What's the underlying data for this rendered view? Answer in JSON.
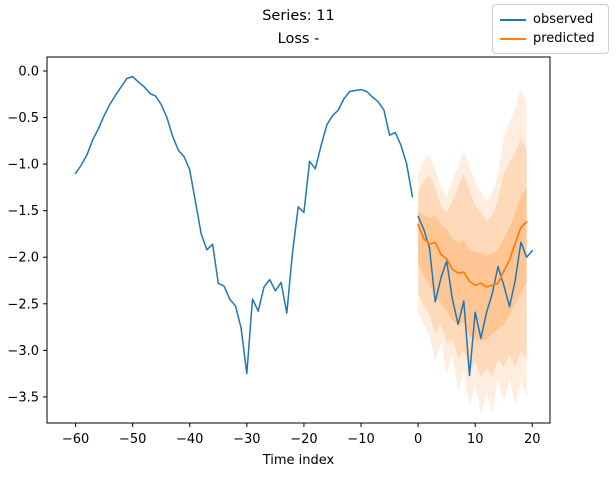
{
  "figure": {
    "title_line1": "Series: 11",
    "title_line2": "Loss -",
    "xlabel": "Time index"
  },
  "legend": {
    "items": [
      {
        "name": "observed",
        "label": "observed",
        "color": "#1f77b4"
      },
      {
        "name": "predicted",
        "label": "predicted",
        "color": "#ff7f0e"
      }
    ]
  },
  "chart_data": {
    "type": "line",
    "title": "Series: 11",
    "subtitle": "Loss -",
    "xlabel": "Time index",
    "ylabel": "",
    "xlim": [
      -65,
      23.1
    ],
    "ylim": [
      -3.78,
      0.15
    ],
    "xticks": [
      -60,
      -50,
      -40,
      -30,
      -20,
      -10,
      0,
      10,
      20
    ],
    "yticks": [
      0.0,
      -0.5,
      -1.0,
      -1.5,
      -2.0,
      -2.5,
      -3.0,
      -3.5
    ],
    "grid": false,
    "legend_position": "upper-right-outside",
    "axis_color": "#000000",
    "series": [
      {
        "name": "observed_history",
        "legend": "observed",
        "color": "#1f77b4",
        "linewidth": 1.5,
        "x": [
          -60,
          -59,
          -58,
          -57,
          -56,
          -55,
          -54,
          -53,
          -52,
          -51,
          -50,
          -49,
          -48,
          -47,
          -46,
          -45,
          -44,
          -43,
          -42,
          -41,
          -40,
          -39,
          -38,
          -37,
          -36,
          -35,
          -34,
          -33,
          -32,
          -31,
          -30,
          -29,
          -28,
          -27,
          -26,
          -25,
          -24,
          -23,
          -22,
          -21,
          -20,
          -19,
          -18,
          -17,
          -16,
          -15,
          -14,
          -13,
          -12,
          -11,
          -10,
          -9,
          -8,
          -7,
          -6,
          -5,
          -4,
          -3,
          -2,
          -1
        ],
        "y": [
          -1.1,
          -1.01,
          -0.9,
          -0.74,
          -0.62,
          -0.48,
          -0.36,
          -0.26,
          -0.17,
          -0.08,
          -0.06,
          -0.12,
          -0.17,
          -0.24,
          -0.27,
          -0.36,
          -0.5,
          -0.7,
          -0.85,
          -0.92,
          -1.06,
          -1.4,
          -1.75,
          -1.92,
          -1.86,
          -2.28,
          -2.31,
          -2.45,
          -2.52,
          -2.76,
          -3.25,
          -2.45,
          -2.58,
          -2.32,
          -2.24,
          -2.36,
          -2.27,
          -2.6,
          -1.95,
          -1.46,
          -1.52,
          -0.97,
          -1.05,
          -0.8,
          -0.58,
          -0.48,
          -0.42,
          -0.3,
          -0.22,
          -0.21,
          -0.2,
          -0.22,
          -0.28,
          -0.33,
          -0.42,
          -0.69,
          -0.66,
          -0.8,
          -1.0,
          -1.35
        ]
      },
      {
        "name": "observed_window",
        "legend": "observed",
        "color": "#1f77b4",
        "linewidth": 1.5,
        "x": [
          0,
          1,
          2,
          3,
          4,
          5,
          6,
          7,
          8,
          9,
          10,
          11,
          12,
          13,
          14,
          15,
          16,
          17,
          18,
          19,
          20
        ],
        "y": [
          -1.56,
          -1.7,
          -1.9,
          -2.48,
          -2.22,
          -2.04,
          -2.45,
          -2.72,
          -2.47,
          -3.27,
          -2.59,
          -2.87,
          -2.59,
          -2.39,
          -2.1,
          -2.3,
          -2.53,
          -2.25,
          -1.84,
          -2.0,
          -1.93
        ]
      },
      {
        "name": "predicted_median",
        "legend": "predicted",
        "color": "#ff7f0e",
        "linewidth": 1.8,
        "x": [
          0,
          1,
          2,
          3,
          4,
          5,
          6,
          7,
          8,
          9,
          10,
          11,
          12,
          13,
          14,
          15,
          16,
          17,
          18,
          19
        ],
        "y": [
          -1.65,
          -1.8,
          -1.86,
          -1.84,
          -1.97,
          -2.02,
          -2.13,
          -2.17,
          -2.16,
          -2.26,
          -2.3,
          -2.28,
          -2.32,
          -2.3,
          -2.28,
          -2.15,
          -2.03,
          -1.85,
          -1.68,
          -1.62
        ]
      }
    ],
    "bands": [
      {
        "name": "prediction_interval_outer",
        "color": "#ff7f0e",
        "opacity": 0.13,
        "x": [
          0,
          1,
          2,
          3,
          4,
          5,
          6,
          7,
          8,
          9,
          10,
          11,
          12,
          13,
          14,
          15,
          16,
          17,
          18,
          19
        ],
        "top": [
          -1.12,
          -0.95,
          -0.9,
          -1.05,
          -1.25,
          -1.35,
          -1.18,
          -1.02,
          -0.85,
          -1.02,
          -1.2,
          -1.3,
          -1.4,
          -1.32,
          -1.1,
          -0.72,
          -0.55,
          -0.4,
          -0.18,
          -0.35
        ],
        "bottom": [
          -2.6,
          -2.72,
          -2.85,
          -3.12,
          -2.92,
          -3.25,
          -3.05,
          -3.44,
          -3.21,
          -3.6,
          -3.37,
          -3.69,
          -3.46,
          -3.66,
          -3.31,
          -3.56,
          -3.31,
          -3.59,
          -3.33,
          -3.52
        ]
      },
      {
        "name": "prediction_interval_middle",
        "color": "#ff7f0e",
        "opacity": 0.18,
        "x": [
          0,
          1,
          2,
          3,
          4,
          5,
          6,
          7,
          8,
          9,
          10,
          11,
          12,
          13,
          14,
          15,
          16,
          17,
          18,
          19
        ],
        "top": [
          -1.3,
          -1.18,
          -1.12,
          -1.25,
          -1.45,
          -1.52,
          -1.4,
          -1.25,
          -1.1,
          -1.28,
          -1.45,
          -1.52,
          -1.6,
          -1.55,
          -1.38,
          -1.1,
          -0.98,
          -0.88,
          -0.72,
          -0.85
        ],
        "bottom": [
          -2.38,
          -2.52,
          -2.62,
          -2.82,
          -2.72,
          -2.92,
          -2.88,
          -3.08,
          -3.0,
          -3.22,
          -3.12,
          -3.28,
          -3.2,
          -3.28,
          -3.1,
          -3.18,
          -3.05,
          -3.18,
          -3.0,
          -3.1
        ]
      },
      {
        "name": "prediction_interval_inner",
        "color": "#ff7f0e",
        "opacity": 0.22,
        "x": [
          0,
          1,
          2,
          3,
          4,
          5,
          6,
          7,
          8,
          9,
          10,
          11,
          12,
          13,
          14,
          15,
          16,
          17,
          18,
          19
        ],
        "top": [
          -1.5,
          -1.55,
          -1.58,
          -1.55,
          -1.65,
          -1.7,
          -1.8,
          -1.85,
          -1.82,
          -1.92,
          -1.95,
          -1.95,
          -1.98,
          -1.96,
          -1.92,
          -1.8,
          -1.68,
          -1.52,
          -1.35,
          -1.25
        ],
        "bottom": [
          -2.05,
          -2.2,
          -2.3,
          -2.42,
          -2.5,
          -2.58,
          -2.68,
          -2.72,
          -2.7,
          -2.85,
          -2.88,
          -2.9,
          -2.88,
          -2.82,
          -2.78,
          -2.72,
          -2.62,
          -2.5,
          -2.38,
          -2.28
        ]
      }
    ]
  }
}
